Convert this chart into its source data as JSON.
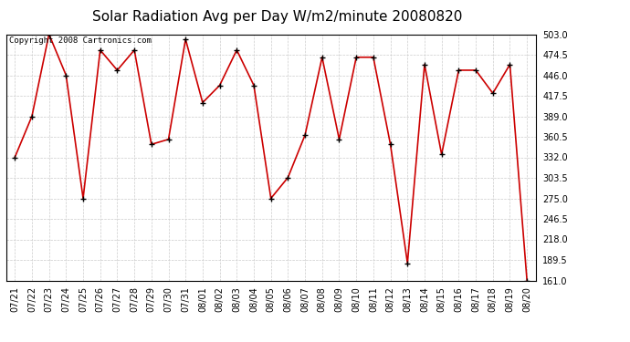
{
  "title": "Solar Radiation Avg per Day W/m2/minute 20080820",
  "copyright_text": "Copyright 2008 Cartronics.com",
  "dates": [
    "07/21",
    "07/22",
    "07/23",
    "07/24",
    "07/25",
    "07/26",
    "07/27",
    "07/28",
    "07/29",
    "07/30",
    "07/31",
    "08/01",
    "08/02",
    "08/03",
    "08/04",
    "08/05",
    "08/06",
    "08/07",
    "08/08",
    "08/09",
    "08/10",
    "08/11",
    "08/12",
    "08/13",
    "08/14",
    "08/15",
    "08/16",
    "08/17",
    "08/18",
    "08/19",
    "08/20"
  ],
  "values": [
    332.0,
    389.0,
    503.0,
    446.0,
    275.0,
    481.0,
    453.0,
    481.0,
    350.0,
    357.0,
    496.0,
    408.0,
    432.0,
    481.0,
    432.0,
    275.0,
    304.0,
    363.0,
    471.0,
    357.0,
    471.0,
    471.0,
    350.0,
    185.0,
    461.0,
    336.0,
    453.0,
    453.0,
    421.0,
    461.0,
    161.0
  ],
  "line_color": "#cc0000",
  "marker_color": "#000000",
  "bg_color": "#ffffff",
  "grid_color": "#cccccc",
  "ylim": [
    161.0,
    503.0
  ],
  "yticks": [
    161.0,
    189.5,
    218.0,
    246.5,
    275.0,
    303.5,
    332.0,
    360.5,
    389.0,
    417.5,
    446.0,
    474.5,
    503.0
  ],
  "title_fontsize": 11,
  "copyright_fontsize": 6.5,
  "tick_fontsize": 7,
  "fig_width": 6.9,
  "fig_height": 3.75,
  "fig_dpi": 100
}
